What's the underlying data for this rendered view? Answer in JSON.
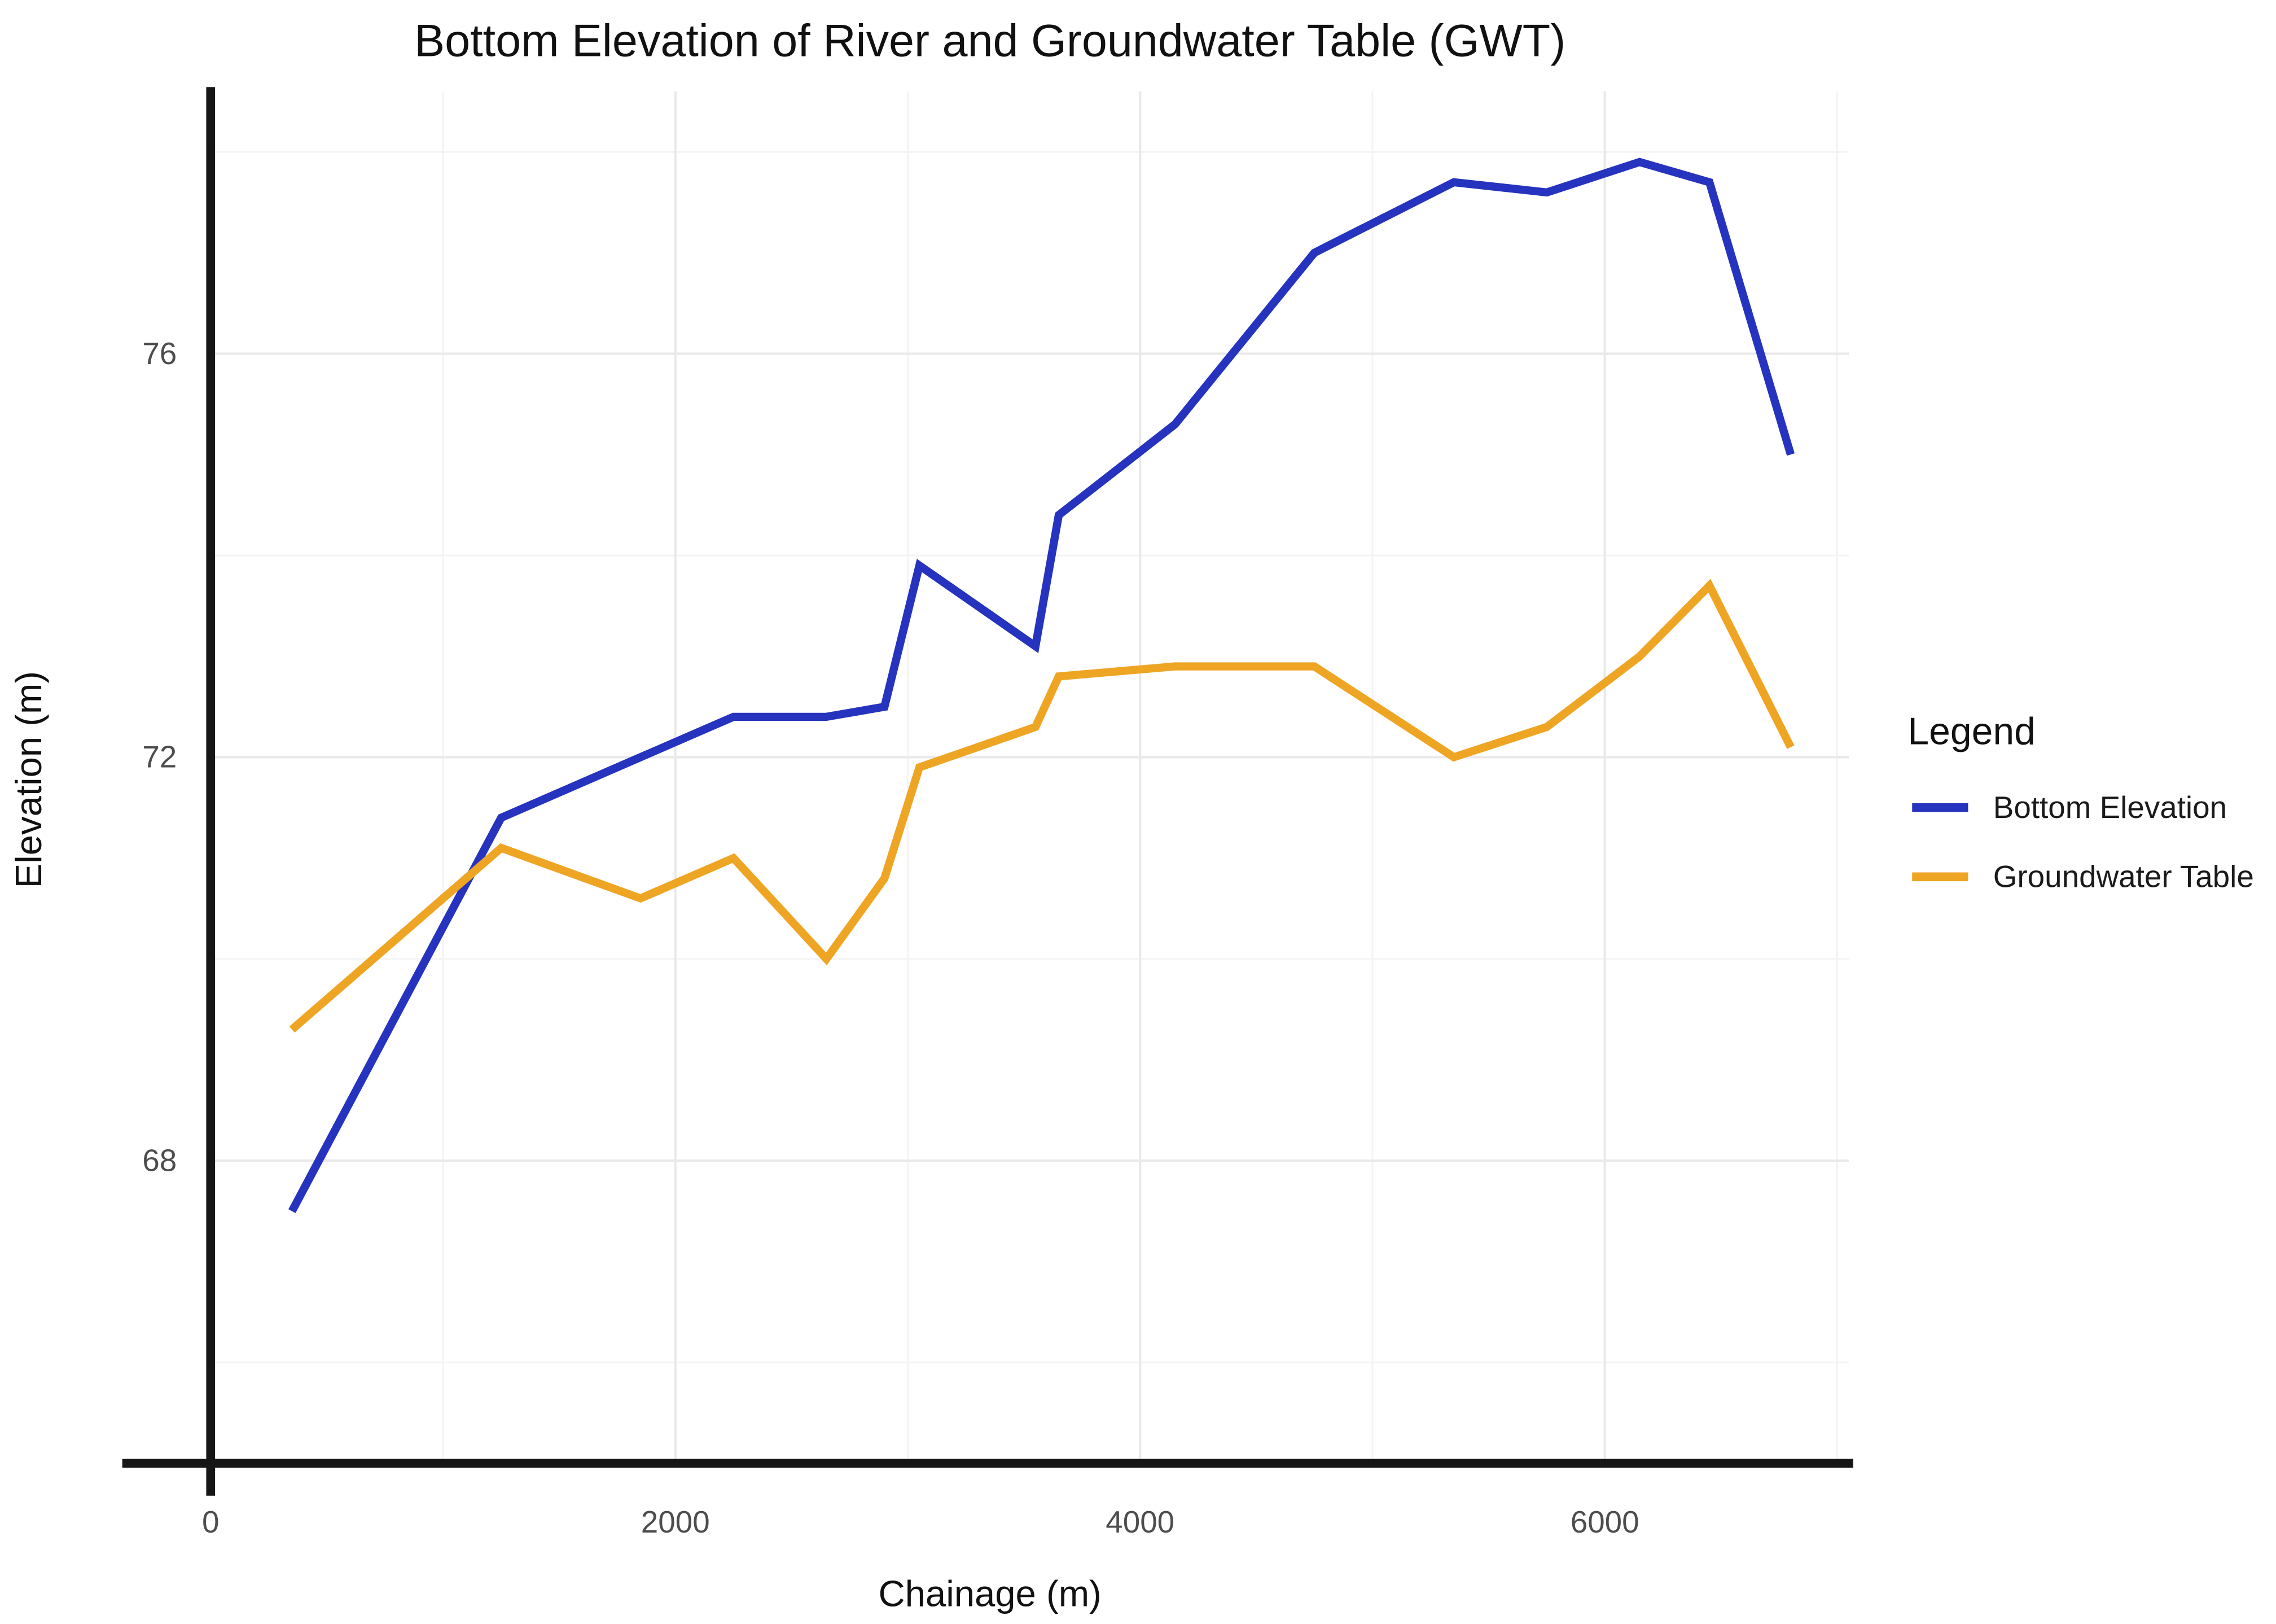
{
  "legend": {
    "title": "Legend"
  },
  "chart_data": {
    "type": "line",
    "title": "Bottom Elevation of River and Groundwater Table (GWT)",
    "xlabel": "Chainage (m)",
    "ylabel": "Elevation (m)",
    "x": [
      350,
      1250,
      1850,
      2250,
      2650,
      2900,
      3050,
      3550,
      3650,
      4150,
      4750,
      5350,
      5750,
      6150,
      6450,
      6800
    ],
    "series": [
      {
        "name": "Bottom Elevation",
        "color": "#2633BE",
        "values": [
          67.5,
          71.4,
          72.0,
          72.4,
          72.4,
          72.5,
          73.9,
          73.1,
          74.4,
          75.3,
          77.0,
          77.7,
          77.6,
          77.9,
          77.7,
          75.0
        ]
      },
      {
        "name": "Groundwater Table",
        "color": "#EFA524",
        "values": [
          69.3,
          71.1,
          70.6,
          71.0,
          70.0,
          70.8,
          71.9,
          72.3,
          72.8,
          72.9,
          72.9,
          72.0,
          72.3,
          73.0,
          73.7,
          72.1
        ]
      }
    ],
    "xlim": [
      0,
      7050
    ],
    "ylim": [
      65,
      78.6
    ],
    "x_ticks": [
      0,
      2000,
      4000,
      6000
    ],
    "y_ticks": [
      68,
      72,
      76
    ],
    "x_minor_ticks": [
      1000,
      3000,
      5000,
      7000
    ],
    "y_minor_ticks": [
      66,
      70,
      74,
      78
    ],
    "grid": true,
    "legend_position": "right",
    "background_color": "#ffffff",
    "axis_color": "#161616",
    "gridline_color": "#e9e9e9"
  }
}
